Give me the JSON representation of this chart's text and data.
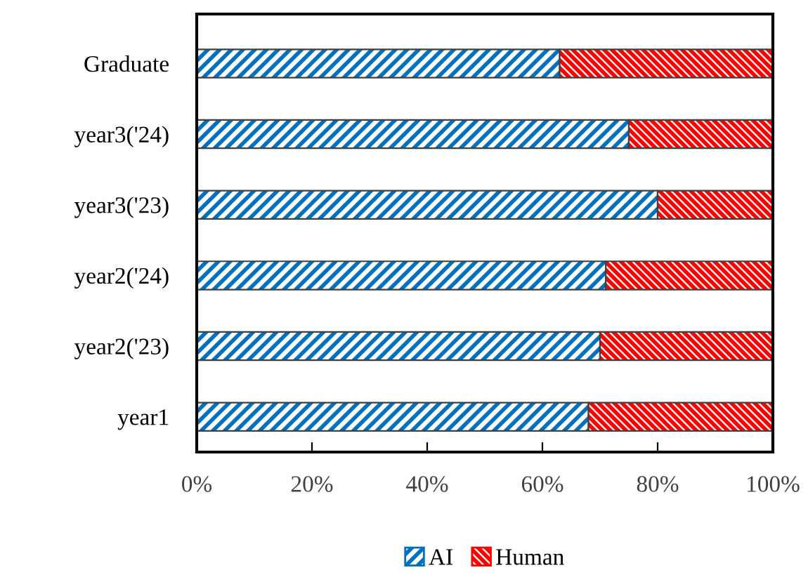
{
  "chart_data": {
    "type": "bar",
    "orientation": "horizontal",
    "stacked": true,
    "categories": [
      "Graduate",
      "year3('24)",
      "year3('23)",
      "year2('24)",
      "year2('23)",
      "year1"
    ],
    "series": [
      {
        "name": "AI",
        "color": "#0070c0",
        "values": [
          63,
          75,
          80,
          71,
          70,
          68
        ]
      },
      {
        "name": "Human",
        "color": "#ff0000",
        "values": [
          37,
          25,
          20,
          29,
          30,
          32
        ]
      }
    ],
    "xlim": [
      0,
      100
    ],
    "xticks": [
      {
        "value": 0,
        "label": "0%"
      },
      {
        "value": 20,
        "label": "20%"
      },
      {
        "value": 40,
        "label": "40%"
      },
      {
        "value": 60,
        "label": "60%"
      },
      {
        "value": 80,
        "label": "80%"
      },
      {
        "value": 100,
        "label": "100%"
      }
    ],
    "grid": false,
    "legend": "bottom"
  }
}
